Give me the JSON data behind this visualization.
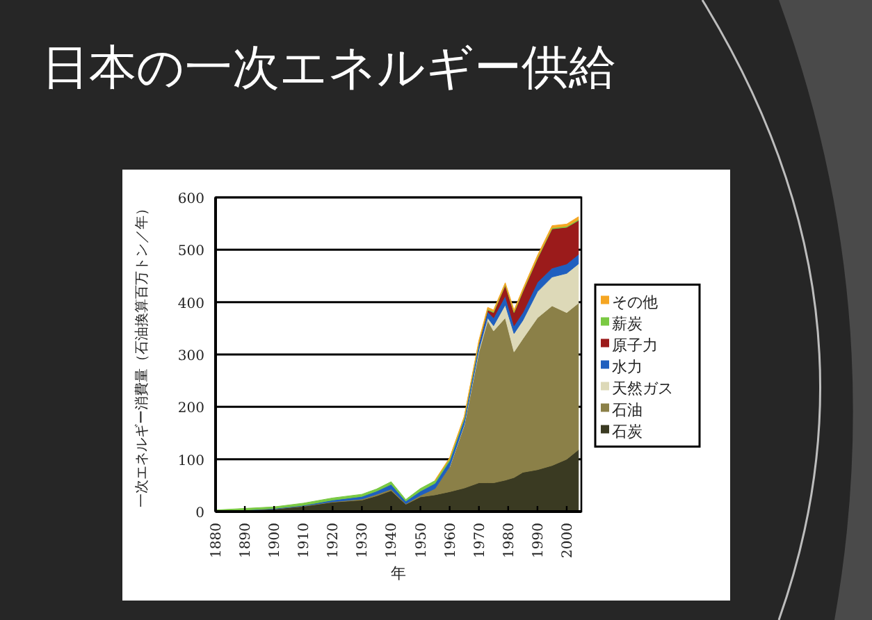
{
  "chart_data": {
    "type": "area",
    "stacked": true,
    "title": "日本の一次エネルギー供給",
    "xlabel": "年",
    "ylabel": "一次エネルギー消費量（石油換算百万トン／年）",
    "x": [
      1880,
      1890,
      1900,
      1910,
      1920,
      1930,
      1935,
      1940,
      1945,
      1950,
      1955,
      1960,
      1965,
      1970,
      1973,
      1975,
      1979,
      1982,
      1985,
      1990,
      1995,
      2000,
      2004
    ],
    "series": [
      {
        "name": "石炭",
        "color": "#3a3a22",
        "values": [
          1,
          3,
          5,
          10,
          18,
          22,
          30,
          40,
          14,
          28,
          32,
          38,
          45,
          55,
          55,
          55,
          60,
          65,
          75,
          80,
          88,
          100,
          118
        ]
      },
      {
        "name": "石油",
        "color": "#8b8048",
        "values": [
          0,
          0,
          0,
          1,
          1,
          2,
          3,
          3,
          1,
          3,
          12,
          47,
          120,
          250,
          310,
          290,
          310,
          240,
          255,
          290,
          305,
          280,
          280
        ]
      },
      {
        "name": "天然ガス",
        "color": "#ddd9b8",
        "values": [
          null,
          null,
          null,
          null,
          null,
          null,
          null,
          null,
          null,
          null,
          null,
          1,
          2,
          5,
          5,
          10,
          25,
          35,
          35,
          50,
          55,
          75,
          75
        ]
      },
      {
        "name": "水力",
        "color": "#1f5fbf",
        "values": [
          0,
          0,
          1,
          1,
          3,
          5,
          6,
          9,
          5,
          8,
          10,
          11,
          10,
          10,
          12,
          15,
          17,
          15,
          15,
          18,
          17,
          18,
          18
        ]
      },
      {
        "name": "原子力",
        "color": "#9b1b1b",
        "values": [
          null,
          null,
          null,
          null,
          null,
          null,
          null,
          null,
          null,
          null,
          null,
          null,
          null,
          2,
          3,
          10,
          20,
          25,
          40,
          45,
          75,
          70,
          65
        ]
      },
      {
        "name": "薪炭",
        "color": "#7ac943",
        "values": [
          2,
          3,
          3,
          4,
          4,
          4,
          4,
          5,
          3,
          5,
          5,
          4,
          3,
          2,
          2,
          2,
          2,
          2,
          2,
          2,
          2,
          2,
          2
        ]
      },
      {
        "name": "その他",
        "color": "#f5a623",
        "values": [
          null,
          null,
          null,
          null,
          null,
          null,
          null,
          null,
          null,
          null,
          1,
          2,
          2,
          3,
          3,
          3,
          3,
          3,
          3,
          4,
          4,
          4,
          5
        ]
      }
    ],
    "xlim": [
      1880,
      2005
    ],
    "ylim": [
      0,
      600
    ],
    "xticks": [
      1880,
      1890,
      1900,
      1910,
      1920,
      1930,
      1940,
      1950,
      1960,
      1970,
      1980,
      1990,
      2000
    ],
    "yticks": [
      0,
      100,
      200,
      300,
      400,
      500,
      600
    ],
    "grid": "y",
    "legend": "right"
  }
}
